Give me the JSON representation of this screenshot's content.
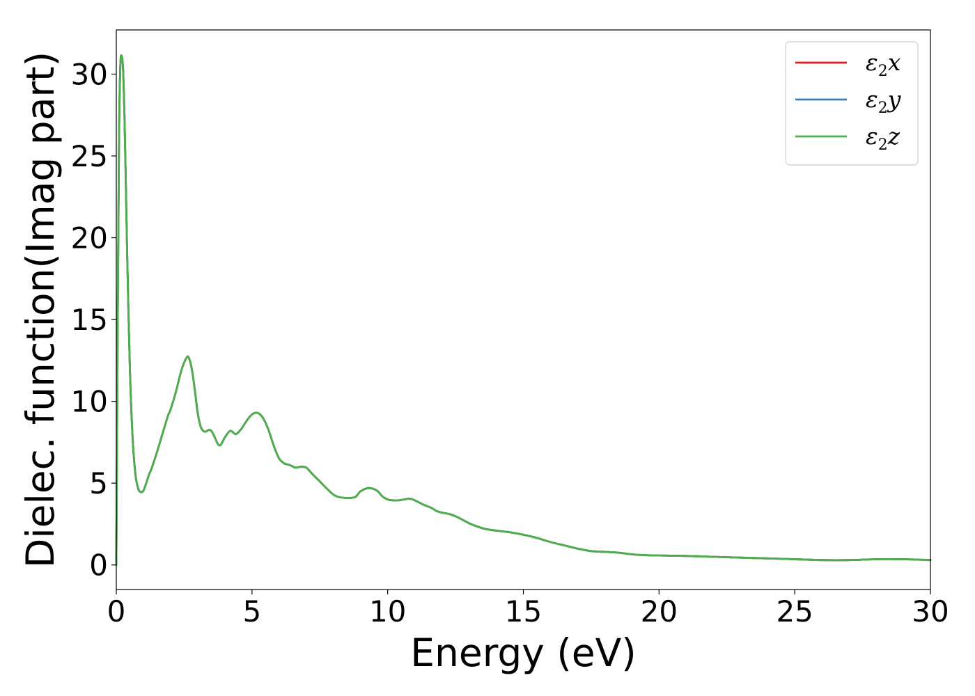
{
  "chart_data": {
    "type": "line",
    "xlabel": "Energy (eV)",
    "ylabel": "Dielec. function(Imag part)",
    "xlim": [
      0,
      30
    ],
    "ylim": [
      -1.5,
      32.7
    ],
    "xticks": [
      "0",
      "5",
      "10",
      "15",
      "20",
      "25",
      "30"
    ],
    "yticks": [
      "0",
      "5",
      "10",
      "15",
      "20",
      "25",
      "30"
    ],
    "grid": false,
    "legend_position": "top-right",
    "x": [
      0,
      0.05,
      0.1,
      0.15,
      0.2,
      0.25,
      0.3,
      0.35,
      0.4,
      0.5,
      0.6,
      0.7,
      0.8,
      0.9,
      1.0,
      1.1,
      1.2,
      1.3,
      1.5,
      1.7,
      1.9,
      2.0,
      2.2,
      2.4,
      2.6,
      2.7,
      2.8,
      2.9,
      3.0,
      3.1,
      3.2,
      3.3,
      3.4,
      3.5,
      3.6,
      3.8,
      4.0,
      4.2,
      4.4,
      4.6,
      4.8,
      5.0,
      5.2,
      5.4,
      5.6,
      5.8,
      6.0,
      6.2,
      6.4,
      6.6,
      6.8,
      7.0,
      7.2,
      7.5,
      7.8,
      8.0,
      8.2,
      8.5,
      8.8,
      9.0,
      9.3,
      9.6,
      9.8,
      10.0,
      10.2,
      10.4,
      10.6,
      10.8,
      11.0,
      11.3,
      11.6,
      11.8,
      12.0,
      12.3,
      12.6,
      13.0,
      13.3,
      13.6,
      14.0,
      14.5,
      15.0,
      15.5,
      16.0,
      16.5,
      17.0,
      17.5,
      18.0,
      18.5,
      19.0,
      19.5,
      20.0,
      21.0,
      22.0,
      23.0,
      24.0,
      25.0,
      26.0,
      27.0,
      28.0,
      29.0,
      30.0
    ],
    "series": [
      {
        "name": "ε2x",
        "color": "#e41a1c",
        "y": [
          0.0,
          14.0,
          26.0,
          30.5,
          31.1,
          30.3,
          27.5,
          23.5,
          19.0,
          12.0,
          7.8,
          5.6,
          4.7,
          4.45,
          4.55,
          5.0,
          5.5,
          5.9,
          6.9,
          8.0,
          9.1,
          9.5,
          10.6,
          11.9,
          12.7,
          12.55,
          11.8,
          10.6,
          9.3,
          8.5,
          8.2,
          8.15,
          8.25,
          8.2,
          7.9,
          7.3,
          7.8,
          8.2,
          8.0,
          8.3,
          8.8,
          9.2,
          9.3,
          9.0,
          8.3,
          7.3,
          6.5,
          6.2,
          6.1,
          5.95,
          6.0,
          5.95,
          5.6,
          5.1,
          4.6,
          4.3,
          4.15,
          4.1,
          4.15,
          4.5,
          4.7,
          4.55,
          4.2,
          4.0,
          3.95,
          3.95,
          4.0,
          4.05,
          3.95,
          3.7,
          3.5,
          3.3,
          3.2,
          3.1,
          2.9,
          2.55,
          2.35,
          2.2,
          2.1,
          2.0,
          1.85,
          1.65,
          1.4,
          1.2,
          1.0,
          0.85,
          0.8,
          0.75,
          0.65,
          0.6,
          0.58,
          0.55,
          0.5,
          0.45,
          0.4,
          0.35,
          0.3,
          0.3,
          0.35,
          0.35,
          0.3
        ]
      },
      {
        "name": "ε2y",
        "color": "#377eb8",
        "y": [
          0.0,
          14.0,
          26.0,
          30.5,
          31.1,
          30.3,
          27.5,
          23.5,
          19.0,
          12.0,
          7.8,
          5.6,
          4.7,
          4.45,
          4.55,
          5.0,
          5.5,
          5.9,
          6.9,
          8.0,
          9.1,
          9.5,
          10.6,
          11.9,
          12.7,
          12.55,
          11.8,
          10.6,
          9.3,
          8.5,
          8.2,
          8.15,
          8.25,
          8.2,
          7.9,
          7.3,
          7.8,
          8.2,
          8.0,
          8.3,
          8.8,
          9.2,
          9.3,
          9.0,
          8.3,
          7.3,
          6.5,
          6.2,
          6.1,
          5.95,
          6.0,
          5.95,
          5.6,
          5.1,
          4.6,
          4.3,
          4.15,
          4.1,
          4.15,
          4.5,
          4.7,
          4.55,
          4.2,
          4.0,
          3.95,
          3.95,
          4.0,
          4.05,
          3.95,
          3.7,
          3.5,
          3.3,
          3.2,
          3.1,
          2.9,
          2.55,
          2.35,
          2.2,
          2.1,
          2.0,
          1.85,
          1.65,
          1.4,
          1.2,
          1.0,
          0.85,
          0.8,
          0.75,
          0.65,
          0.6,
          0.58,
          0.55,
          0.5,
          0.45,
          0.4,
          0.35,
          0.3,
          0.3,
          0.35,
          0.35,
          0.3
        ]
      },
      {
        "name": "ε2z",
        "color": "#4daf4a",
        "y": [
          0.0,
          14.0,
          26.0,
          30.5,
          31.1,
          30.3,
          27.5,
          23.5,
          19.0,
          12.0,
          7.8,
          5.6,
          4.7,
          4.45,
          4.55,
          5.0,
          5.5,
          5.9,
          6.9,
          8.0,
          9.1,
          9.5,
          10.6,
          11.9,
          12.7,
          12.55,
          11.8,
          10.6,
          9.3,
          8.5,
          8.2,
          8.15,
          8.25,
          8.2,
          7.9,
          7.3,
          7.8,
          8.2,
          8.0,
          8.3,
          8.8,
          9.2,
          9.3,
          9.0,
          8.3,
          7.3,
          6.5,
          6.2,
          6.1,
          5.95,
          6.0,
          5.95,
          5.6,
          5.1,
          4.6,
          4.3,
          4.15,
          4.1,
          4.15,
          4.5,
          4.7,
          4.55,
          4.2,
          4.0,
          3.95,
          3.95,
          4.0,
          4.05,
          3.95,
          3.7,
          3.5,
          3.3,
          3.2,
          3.1,
          2.9,
          2.55,
          2.35,
          2.2,
          2.1,
          2.0,
          1.85,
          1.65,
          1.4,
          1.2,
          1.0,
          0.85,
          0.8,
          0.75,
          0.65,
          0.6,
          0.58,
          0.55,
          0.5,
          0.45,
          0.4,
          0.35,
          0.3,
          0.3,
          0.35,
          0.35,
          0.3
        ]
      }
    ],
    "legend": [
      {
        "symbol": "ε",
        "sub": "2",
        "var": "x",
        "color": "#e41a1c"
      },
      {
        "symbol": "ε",
        "sub": "2",
        "var": "y",
        "color": "#377eb8"
      },
      {
        "symbol": "ε",
        "sub": "2",
        "var": "z",
        "color": "#4daf4a"
      }
    ]
  }
}
